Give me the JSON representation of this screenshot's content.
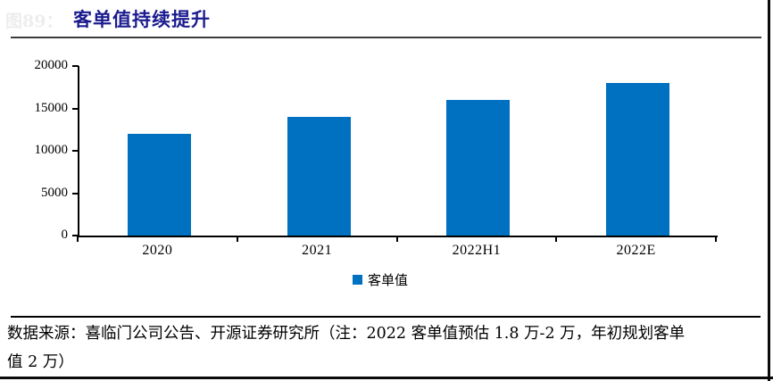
{
  "figure": {
    "faint_label": "图89：",
    "title": "客单值持续提升",
    "source_lines": [
      "数据来源：喜临门公司公告、开源证券研究所（注：2022 客单值预估 1.8 万-2 万，年初规划客单",
      "值 2 万）"
    ]
  },
  "chart_data": {
    "type": "bar",
    "categories": [
      "2020",
      "2021",
      "2022H1",
      "2022E"
    ],
    "values": [
      12000,
      14000,
      16000,
      18000
    ],
    "series_name": "客单值",
    "title": "客单值持续提升",
    "xlabel": "",
    "ylabel": "",
    "ylim": [
      0,
      20000
    ],
    "yticks": [
      0,
      5000,
      10000,
      15000,
      20000
    ],
    "grid": false,
    "legend_position": "bottom",
    "bar_color": "#0070C0"
  },
  "colors": {
    "bar": "#0070C0",
    "title_text": "#1b1b8f",
    "axis": "#000000",
    "faint_label": "#ededed"
  }
}
